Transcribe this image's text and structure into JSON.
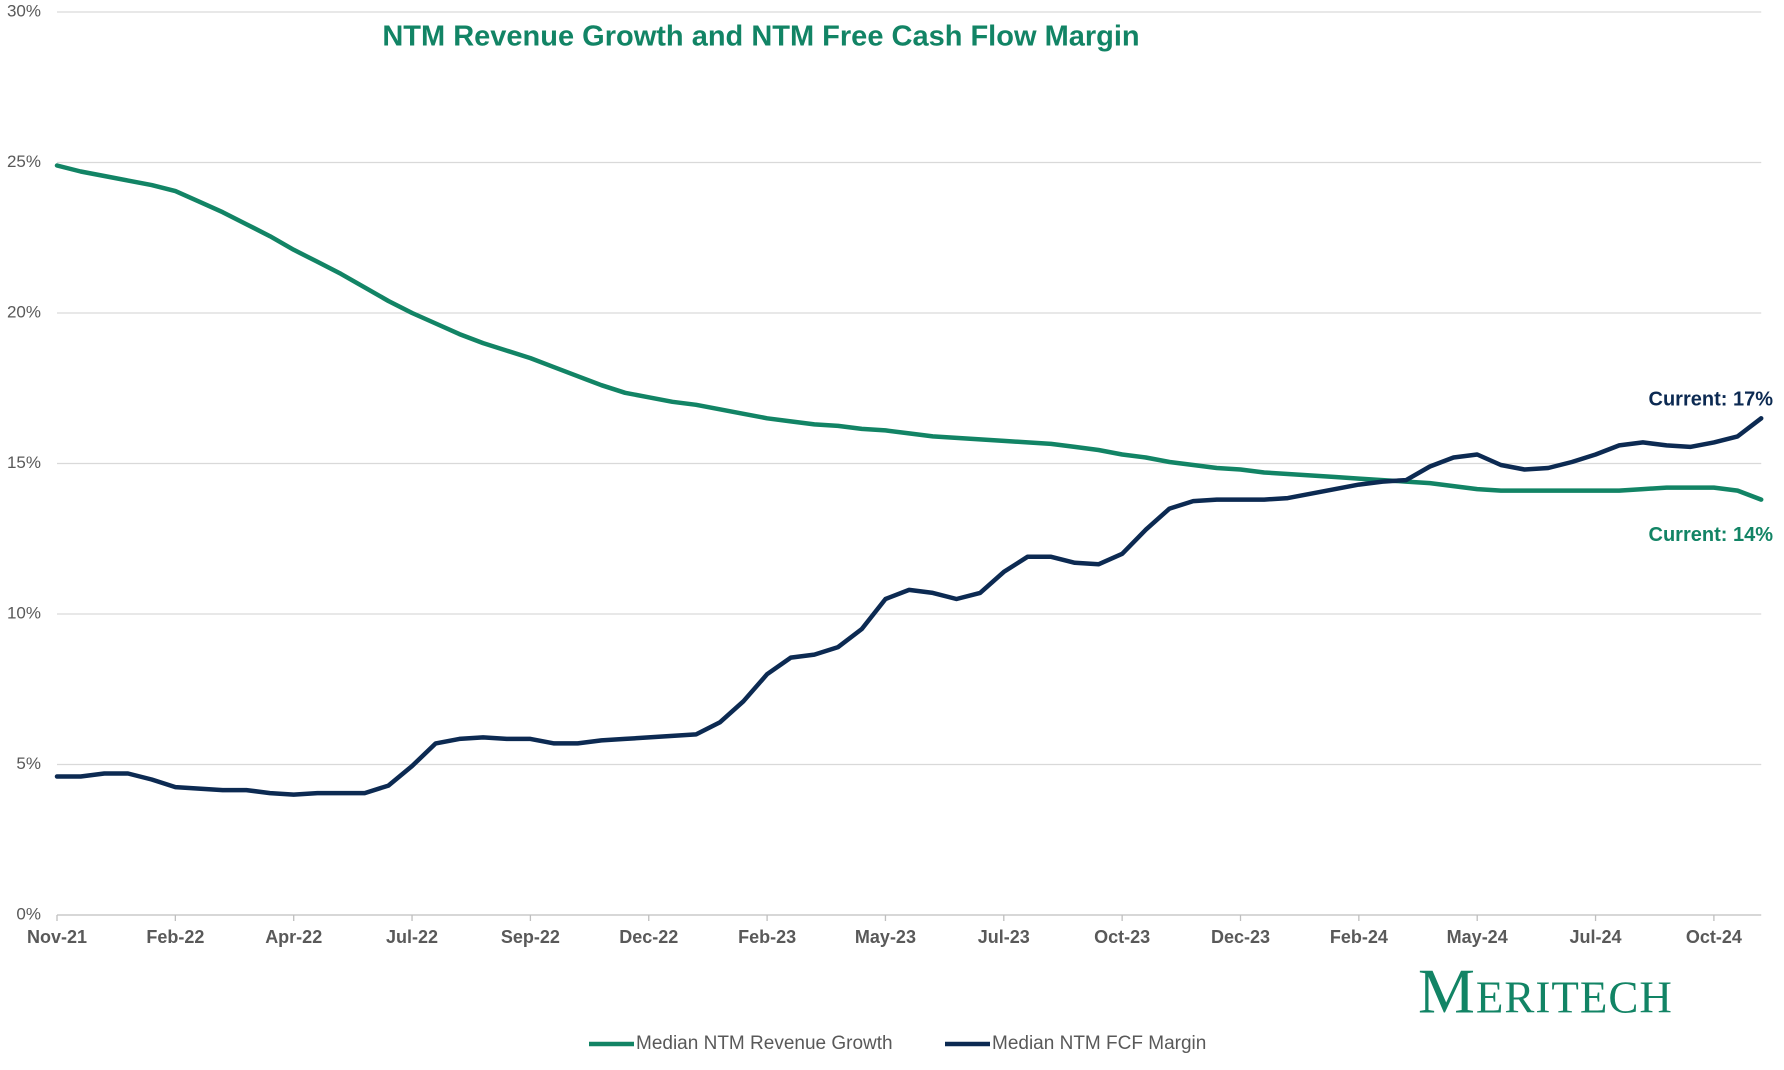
{
  "chart_data": {
    "type": "line",
    "title": "NTM Revenue Growth and NTM Free Cash Flow Margin",
    "logo": "Meritech",
    "categories": [
      "Nov-21",
      null,
      null,
      null,
      null,
      "Feb-22",
      null,
      null,
      null,
      null,
      "Apr-22",
      null,
      null,
      null,
      null,
      "Jul-22",
      null,
      null,
      null,
      null,
      "Sep-22",
      null,
      null,
      null,
      null,
      "Dec-22",
      null,
      null,
      null,
      null,
      "Feb-23",
      null,
      null,
      null,
      null,
      "May-23",
      null,
      null,
      null,
      null,
      "Jul-23",
      null,
      null,
      null,
      null,
      "Oct-23",
      null,
      null,
      null,
      null,
      "Dec-23",
      null,
      null,
      null,
      null,
      "Feb-24",
      null,
      null,
      null,
      null,
      "May-24",
      null,
      null,
      null,
      null,
      "Jul-24",
      null,
      null,
      null,
      null,
      "Oct-24",
      null,
      null
    ],
    "series": [
      {
        "name": "Median NTM Revenue Growth",
        "color": "#128465",
        "values": [
          24.9,
          24.7,
          24.55,
          24.4,
          24.25,
          24.05,
          23.7,
          23.35,
          22.95,
          22.55,
          22.1,
          21.7,
          21.3,
          20.85,
          20.4,
          20.0,
          19.65,
          19.3,
          19.0,
          18.75,
          18.5,
          18.2,
          17.9,
          17.6,
          17.35,
          17.2,
          17.05,
          16.95,
          16.8,
          16.65,
          16.5,
          16.4,
          16.3,
          16.25,
          16.15,
          16.1,
          16.0,
          15.9,
          15.85,
          15.8,
          15.75,
          15.7,
          15.65,
          15.55,
          15.45,
          15.3,
          15.2,
          15.05,
          14.95,
          14.85,
          14.8,
          14.7,
          14.65,
          14.6,
          14.55,
          14.5,
          14.45,
          14.4,
          14.35,
          14.25,
          14.15,
          14.1,
          14.1,
          14.1,
          14.1,
          14.1,
          14.1,
          14.15,
          14.2,
          14.2,
          14.2,
          14.1,
          13.8
        ]
      },
      {
        "name": "Median NTM FCF Margin",
        "color": "#0c2a52",
        "values": [
          4.6,
          4.6,
          4.7,
          4.7,
          4.5,
          4.25,
          4.2,
          4.15,
          4.15,
          4.05,
          4.0,
          4.05,
          4.05,
          4.05,
          4.3,
          4.95,
          5.7,
          5.85,
          5.9,
          5.85,
          5.85,
          5.7,
          5.7,
          5.8,
          5.85,
          5.9,
          5.95,
          6.0,
          6.4,
          7.1,
          8.0,
          8.55,
          8.65,
          8.9,
          9.5,
          10.5,
          10.8,
          10.7,
          10.5,
          10.7,
          11.4,
          11.9,
          11.9,
          11.7,
          11.65,
          12.0,
          12.8,
          13.5,
          13.75,
          13.8,
          13.8,
          13.8,
          13.85,
          14.0,
          14.15,
          14.3,
          14.4,
          14.45,
          14.9,
          15.2,
          15.3,
          14.95,
          14.8,
          14.85,
          15.05,
          15.3,
          15.6,
          15.7,
          15.6,
          15.55,
          15.7,
          15.9,
          16.5
        ]
      }
    ],
    "annotations": [
      {
        "text": "Current: 17%",
        "series": 1
      },
      {
        "text": "Current: 14%",
        "series": 0
      }
    ],
    "ylim": [
      0,
      30
    ],
    "yticks": [
      {
        "value": 0,
        "label": "0%"
      },
      {
        "value": 5,
        "label": "5%"
      },
      {
        "value": 10,
        "label": "10%"
      },
      {
        "value": 15,
        "label": "15%"
      },
      {
        "value": 20,
        "label": "20%"
      },
      {
        "value": 25,
        "label": "25%"
      },
      {
        "value": 30,
        "label": "30%"
      }
    ],
    "grid": true,
    "legend": "bottom"
  }
}
